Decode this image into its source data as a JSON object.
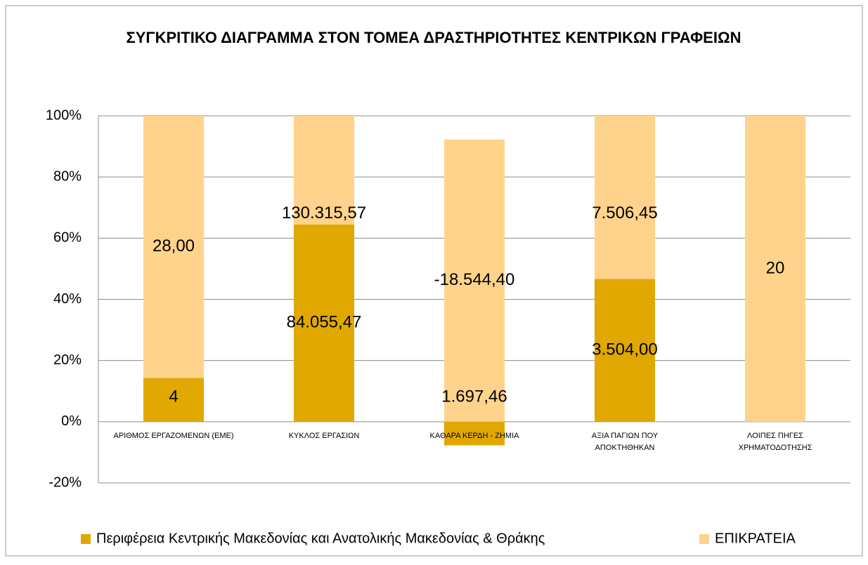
{
  "chart_data": {
    "type": "bar",
    "stacked": "percent-of-total",
    "title": "ΣΥΓΚΡΙΤΙΚΟ ΔΙΑΓΡΑΜΜΑ ΣΤΟΝ ΤΟΜΕΑ ΔΡΑΣΤΗΡΙΟΤΗΤΕΣ ΚΕΝΤΡΙΚΩΝ ΓΡΑΦΕΙΩΝ",
    "categories": [
      "ΑΡΙΘΜΟΣ ΕΡΓΑΖΟΜΕΝΩΝ (ΕΜΕ)",
      "ΚΥΚΛΟΣ ΕΡΓΑΣΙΩΝ",
      "ΚΑΘΑΡΑ ΚΕΡΔΗ - ΖΗΜΙΑ",
      "ΑΞΙΑ ΠΑΓΙΩΝ ΠΟΥ ΑΠΟΚΤΗΘΗΚΑΝ",
      "ΛΟΙΠΕΣ ΠΗΓΕΣ ΧΡΗΜΑΤΟΔΟΤΗΣΗΣ"
    ],
    "series": [
      {
        "name": "Περιφέρεια Κεντρικής Μακεδονίας και Ανατολικής Μακεδονίας & Θράκης",
        "color": "#e0a800",
        "values": [
          4,
          84055.47,
          1697.46,
          3504.0,
          null
        ],
        "value_labels": [
          "4",
          "84.055,47",
          "1.697,46",
          "3.504,00",
          null
        ]
      },
      {
        "name": "ΕΠΙΚΡΑΤΕΙΑ",
        "color": "#ffd38b",
        "values": [
          28.0,
          130315.57,
          -18544.4,
          7506.45,
          20
        ],
        "value_labels": [
          "28,00",
          "130.315,57",
          "-18.544,40",
          "7.506,45",
          "20"
        ]
      }
    ],
    "ylim": [
      -20,
      100
    ],
    "yticks": [
      {
        "value": -20,
        "label": "-20%"
      },
      {
        "value": 0,
        "label": "0%"
      },
      {
        "value": 20,
        "label": "20%"
      },
      {
        "value": 40,
        "label": "40%"
      },
      {
        "value": 60,
        "label": "60%"
      },
      {
        "value": 80,
        "label": "80%"
      },
      {
        "value": 100,
        "label": "100%"
      }
    ],
    "grid": true,
    "legend": "bottom"
  }
}
